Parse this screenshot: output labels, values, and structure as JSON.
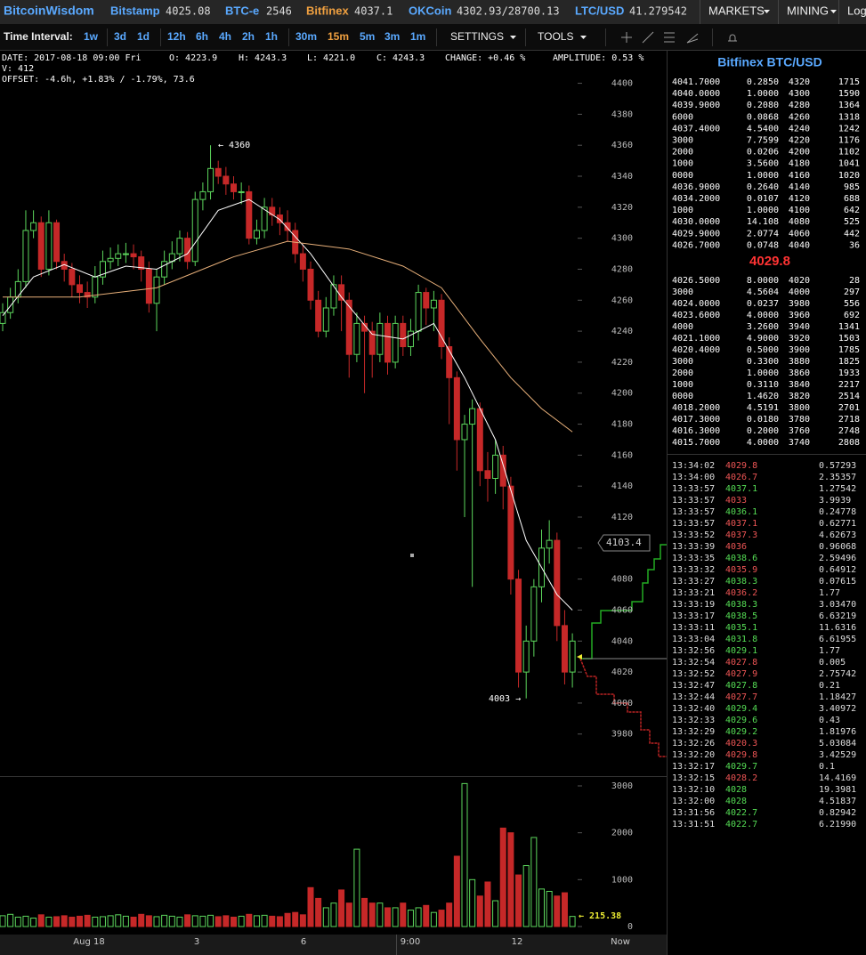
{
  "header": {
    "brand": "BitcoinWisdom",
    "exchanges": [
      {
        "name": "Bitstamp",
        "price": "4025.08"
      },
      {
        "name": "BTC-e",
        "price": "2546"
      },
      {
        "name": "Bitfinex",
        "price": "4037.1"
      },
      {
        "name": "OKCoin",
        "price": "4302.93/28700.13"
      },
      {
        "name": "LTC/USD",
        "price": "41.279542"
      }
    ],
    "menus": [
      "MARKETS",
      "MINING",
      "Login"
    ]
  },
  "toolbar": {
    "label": "Time Interval:",
    "intervals": [
      "1w",
      "3d",
      "1d",
      "12h",
      "6h",
      "4h",
      "2h",
      "1h",
      "30m",
      "15m",
      "5m",
      "3m",
      "1m"
    ],
    "selected": "15m",
    "menus": [
      "SETTINGS",
      "TOOLS"
    ]
  },
  "info": {
    "line1": [
      "DATE: 2017-08-18 09:00 Fri",
      "O: 4223.9",
      "H: 4243.3",
      "L: 4221.0",
      "C: 4243.3",
      "CHANGE: +0.46 %",
      "AMPLITUDE: 0.53 %"
    ],
    "volume": "V: 412",
    "offset": "OFFSET: -4.6h, +1.83% / -1.79%, 73.6"
  },
  "chart": {
    "type": "candlestick",
    "open": [
      4245,
      4252,
      4262,
      4272,
      4305,
      4310,
      4280,
      4310,
      4285,
      4280,
      4270,
      4265,
      4262,
      4275,
      4285,
      4287,
      4290,
      4290,
      4288,
      4280,
      4258,
      4275,
      4285,
      4290,
      4300,
      4285,
      4325,
      4330,
      4345,
      4340,
      4335,
      4330,
      4330,
      4300,
      4305,
      4320,
      4315,
      4310,
      4305,
      4290,
      4280,
      4260,
      4240,
      4255,
      4270,
      4260,
      4225,
      4245,
      4240,
      4225,
      4245,
      4220,
      4245,
      4230,
      4240,
      4265,
      4255,
      4260,
      4230,
      4210,
      4170,
      4180,
      4190,
      4150,
      4145,
      4160,
      4140,
      4080,
      4020,
      4040,
      4075,
      4100,
      4105,
      4050,
      4020
    ],
    "high": [
      4258,
      4268,
      4280,
      4318,
      4318,
      4314,
      4318,
      4312,
      4290,
      4284,
      4276,
      4272,
      4282,
      4292,
      4294,
      4296,
      4297,
      4296,
      4292,
      4285,
      4280,
      4292,
      4298,
      4305,
      4304,
      4330,
      4336,
      4360,
      4350,
      4346,
      4340,
      4336,
      4334,
      4312,
      4326,
      4326,
      4320,
      4318,
      4310,
      4296,
      4285,
      4266,
      4262,
      4276,
      4276,
      4265,
      4252,
      4250,
      4246,
      4252,
      4250,
      4250,
      4250,
      4248,
      4270,
      4268,
      4266,
      4264,
      4236,
      4214,
      4186,
      4196,
      4194,
      4162,
      4170,
      4166,
      4146,
      4086,
      4050,
      4080,
      4112,
      4118,
      4110,
      4060,
      4045
    ],
    "low": [
      4240,
      4248,
      4258,
      4268,
      4300,
      4275,
      4276,
      4280,
      4272,
      4262,
      4258,
      4255,
      4258,
      4270,
      4280,
      4282,
      4284,
      4280,
      4272,
      4252,
      4240,
      4270,
      4280,
      4285,
      4280,
      4282,
      4318,
      4325,
      4335,
      4328,
      4325,
      4322,
      4296,
      4296,
      4300,
      4308,
      4302,
      4298,
      4284,
      4272,
      4254,
      4236,
      4236,
      4250,
      4240,
      4210,
      4220,
      4200,
      4210,
      4220,
      4212,
      4216,
      4224,
      4224,
      4234,
      4244,
      4240,
      4222,
      4180,
      4150,
      4120,
      4075,
      4140,
      4130,
      4135,
      4125,
      4070,
      4010,
      4003,
      4030,
      4065,
      4090,
      4040,
      4012,
      4010
    ],
    "close": [
      4252,
      4262,
      4272,
      4305,
      4310,
      4280,
      4310,
      4285,
      4280,
      4270,
      4265,
      4262,
      4275,
      4285,
      4287,
      4290,
      4290,
      4288,
      4280,
      4258,
      4275,
      4285,
      4290,
      4300,
      4285,
      4325,
      4330,
      4345,
      4340,
      4335,
      4330,
      4330,
      4300,
      4305,
      4320,
      4315,
      4310,
      4305,
      4290,
      4280,
      4260,
      4240,
      4255,
      4270,
      4260,
      4225,
      4245,
      4240,
      4225,
      4245,
      4220,
      4245,
      4230,
      4240,
      4265,
      4255,
      4260,
      4230,
      4210,
      4170,
      4180,
      4190,
      4150,
      4145,
      4160,
      4140,
      4080,
      4020,
      4040,
      4075,
      4100,
      4105,
      4050,
      4020,
      4040
    ],
    "up_color": "#5cd65c",
    "down_color": "#c62828",
    "ma_fast": {
      "x": [
        0,
        4,
        8,
        12,
        16,
        20,
        24,
        28,
        32,
        36,
        40,
        44,
        48,
        52,
        56,
        60,
        64,
        68,
        72,
        74
      ],
      "values": [
        4250,
        4275,
        4283,
        4275,
        4282,
        4280,
        4290,
        4318,
        4325,
        4312,
        4290,
        4262,
        4238,
        4235,
        4245,
        4210,
        4170,
        4105,
        4070,
        4060
      ],
      "color": "#ffffff"
    },
    "ma_slow": {
      "x": [
        0,
        10,
        20,
        30,
        37,
        45,
        52,
        57,
        62,
        66,
        70,
        74
      ],
      "values": [
        4262,
        4262,
        4268,
        4288,
        4298,
        4293,
        4282,
        4268,
        4235,
        4210,
        4190,
        4175
      ],
      "color": "#e8b07a"
    },
    "ylim": [
      3954,
      4421
    ],
    "yticks": [
      3980,
      4000,
      4020,
      4040,
      4060,
      4080,
      4100,
      4120,
      4140,
      4160,
      4180,
      4200,
      4220,
      4240,
      4260,
      4280,
      4300,
      4320,
      4340,
      4360,
      4380,
      4400
    ],
    "high_label": "← 4360",
    "low_label": "4003 →",
    "price_tag": "4103.4",
    "volume": [
      230,
      260,
      200,
      220,
      180,
      250,
      200,
      210,
      230,
      200,
      220,
      240,
      200,
      210,
      230,
      250,
      220,
      200,
      260,
      230,
      210,
      240,
      220,
      200,
      250,
      230,
      220,
      240,
      210,
      230,
      200,
      220,
      260,
      230,
      240,
      220,
      210,
      280,
      300,
      250,
      830,
      600,
      400,
      500,
      780,
      500,
      1650,
      600,
      500,
      500,
      400,
      400,
      500,
      350,
      400,
      450,
      300,
      350,
      500,
      1500,
      3050,
      1000,
      650,
      950,
      550,
      2100,
      2000,
      1100,
      1300,
      1900,
      800,
      750,
      650,
      720,
      215.38
    ],
    "volume_ylim": [
      0,
      3190
    ],
    "volume_ticks": [
      0,
      1000,
      2000,
      3000
    ],
    "volume_tag": "← 215.38",
    "x_labels": [
      "Aug 18",
      "3",
      "6",
      "9:00",
      "12",
      "Now"
    ]
  },
  "orderbook": {
    "title": "Bitfinex BTC/USD",
    "last": "4029.8",
    "asks": [
      [
        "4041.7000",
        "0.2850",
        "4320",
        "1715"
      ],
      [
        "4040.0000",
        "1.0000",
        "4300",
        "1590"
      ],
      [
        "4039.9000",
        "0.2080",
        "4280",
        "1364"
      ],
      [
        "6000",
        "0.0868",
        "4260",
        "1318"
      ],
      [
        "4037.4000",
        "4.5400",
        "4240",
        "1242"
      ],
      [
        "3000",
        "7.7599",
        "4220",
        "1176"
      ],
      [
        "2000",
        "0.0206",
        "4200",
        "1102"
      ],
      [
        "1000",
        "3.5600",
        "4180",
        "1041"
      ],
      [
        "0000",
        "1.0000",
        "4160",
        "1020"
      ],
      [
        "4036.9000",
        "0.2640",
        "4140",
        "985"
      ],
      [
        "4034.2000",
        "0.0107",
        "4120",
        "688"
      ],
      [
        "1000",
        "1.0000",
        "4100",
        "642"
      ],
      [
        "4030.0000",
        "14.108",
        "4080",
        "525"
      ],
      [
        "4029.9000",
        "2.0774",
        "4060",
        "442"
      ],
      [
        "4026.7000",
        "0.0748",
        "4040",
        "36"
      ]
    ],
    "bids": [
      [
        "4026.5000",
        "8.0000",
        "4020",
        "28"
      ],
      [
        "3000",
        "4.5604",
        "4000",
        "297"
      ],
      [
        "4024.0000",
        "0.0237",
        "3980",
        "556"
      ],
      [
        "4023.6000",
        "4.0000",
        "3960",
        "692"
      ],
      [
        "4000",
        "3.2600",
        "3940",
        "1341"
      ],
      [
        "4021.1000",
        "4.9000",
        "3920",
        "1503"
      ],
      [
        "4020.4000",
        "0.5000",
        "3900",
        "1785"
      ],
      [
        "3000",
        "0.3300",
        "3880",
        "1825"
      ],
      [
        "2000",
        "1.0000",
        "3860",
        "1933"
      ],
      [
        "1000",
        "0.3110",
        "3840",
        "2217"
      ],
      [
        "0000",
        "1.4620",
        "3820",
        "2514"
      ],
      [
        "4018.2000",
        "4.5191",
        "3800",
        "2701"
      ],
      [
        "4017.3000",
        "0.0180",
        "3780",
        "2718"
      ],
      [
        "4016.3000",
        "0.2000",
        "3760",
        "2748"
      ],
      [
        "4015.7000",
        "4.0000",
        "3740",
        "2808"
      ]
    ]
  },
  "trades": {
    "rows": [
      [
        "13:34:02",
        "4029.8",
        "0.57293"
      ],
      [
        "13:34:00",
        "4026.7",
        "2.35357"
      ],
      [
        "13:33:57",
        "4037.1",
        "1.27542"
      ],
      [
        "13:33:57",
        "4033",
        "3.9939"
      ],
      [
        "13:33:57",
        "4036.1",
        "0.24778"
      ],
      [
        "13:33:57",
        "4037.1",
        "0.62771"
      ],
      [
        "13:33:52",
        "4037.3",
        "4.62673"
      ],
      [
        "13:33:39",
        "4036",
        "0.96068"
      ],
      [
        "13:33:35",
        "4038.6",
        "2.59496"
      ],
      [
        "13:33:32",
        "4035.9",
        "0.64912"
      ],
      [
        "13:33:27",
        "4038.3",
        "0.07615"
      ],
      [
        "13:33:21",
        "4036.2",
        "1.77"
      ],
      [
        "13:33:19",
        "4038.3",
        "3.03470"
      ],
      [
        "13:33:17",
        "4038.5",
        "6.63219"
      ],
      [
        "13:33:11",
        "4035.1",
        "11.6316"
      ],
      [
        "13:33:04",
        "4031.8",
        "6.61955"
      ],
      [
        "13:32:56",
        "4029.1",
        "1.77"
      ],
      [
        "13:32:54",
        "4027.8",
        "0.005"
      ],
      [
        "13:32:52",
        "4027.9",
        "2.75742"
      ],
      [
        "13:32:47",
        "4027.8",
        "0.21"
      ],
      [
        "13:32:44",
        "4027.7",
        "1.18427"
      ],
      [
        "13:32:40",
        "4029.4",
        "3.40972"
      ],
      [
        "13:32:33",
        "4029.6",
        "0.43"
      ],
      [
        "13:32:29",
        "4029.2",
        "1.81976"
      ],
      [
        "13:32:26",
        "4020.3",
        "5.03084"
      ],
      [
        "13:32:20",
        "4029.8",
        "3.42529"
      ],
      [
        "13:32:17",
        "4029.7",
        "0.1"
      ],
      [
        "13:32:15",
        "4028.2",
        "14.4169"
      ],
      [
        "13:32:10",
        "4028",
        "19.3981"
      ],
      [
        "13:32:00",
        "4028",
        "4.51837"
      ],
      [
        "13:31:56",
        "4022.7",
        "0.82942"
      ],
      [
        "13:31:51",
        "4022.7",
        "6.21990"
      ]
    ],
    "colors": [
      "#e55",
      "#e55",
      "#5d5",
      "#e55",
      "#5d5",
      "#e55",
      "#e55",
      "#e55",
      "#5d5",
      "#e55",
      "#5d5",
      "#e55",
      "#5d5",
      "#5d5",
      "#5d5",
      "#5d5",
      "#5d5",
      "#e55",
      "#e55",
      "#5d5",
      "#e55",
      "#5d5",
      "#5d5",
      "#5d5",
      "#e55",
      "#e55",
      "#5d5",
      "#e55",
      "#5d5",
      "#5d5",
      "#5d5",
      "#5d5"
    ]
  }
}
